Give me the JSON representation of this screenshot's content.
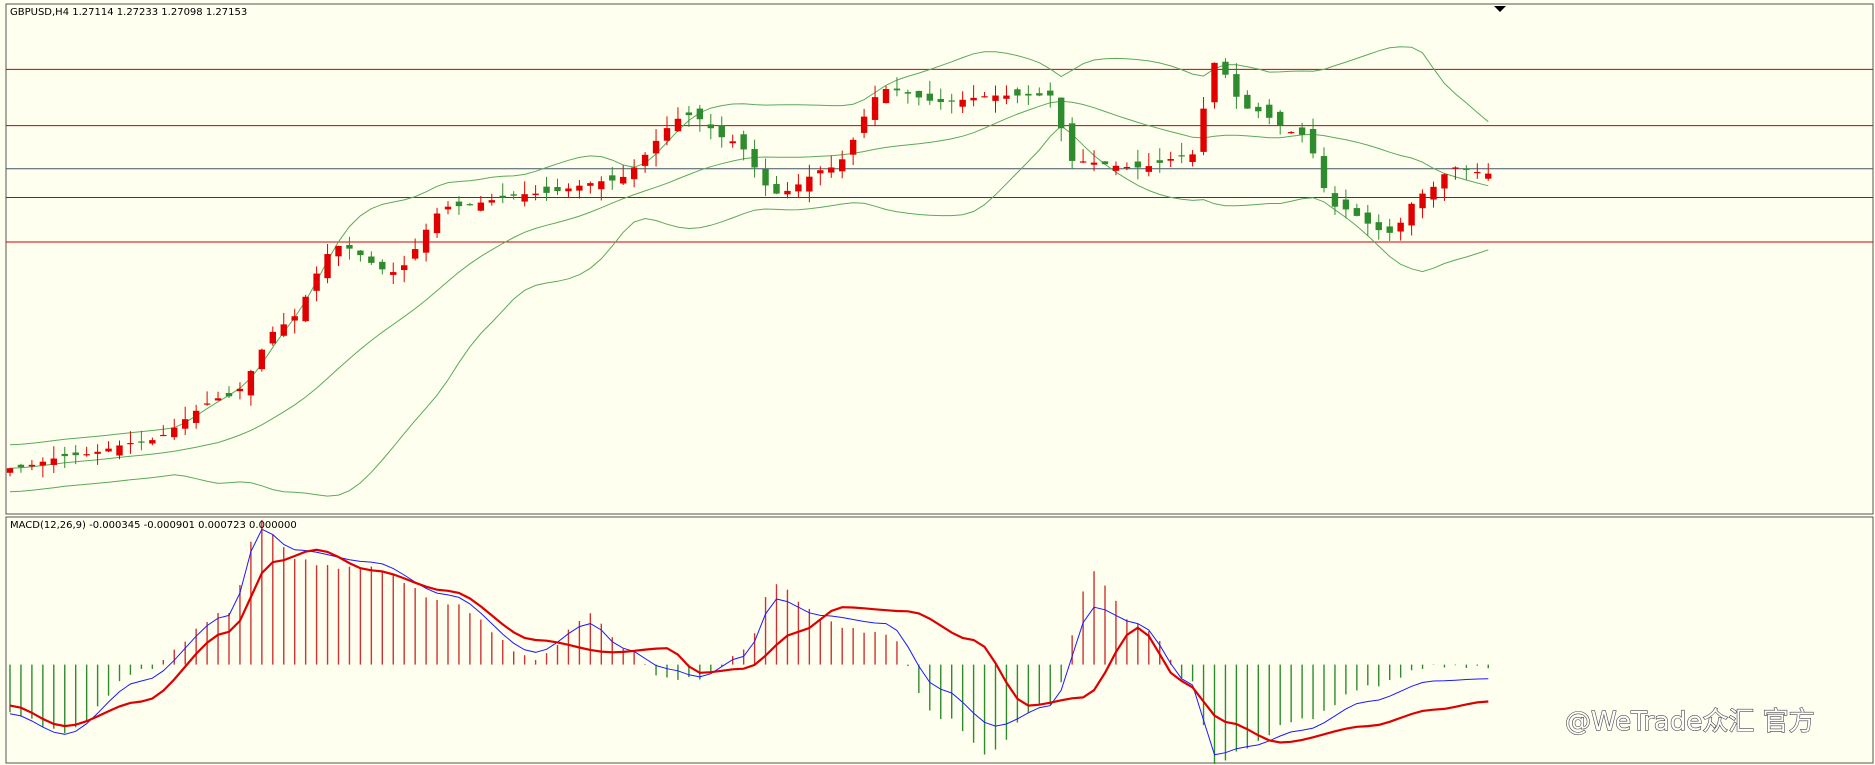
{
  "chart_data": [
    {
      "type": "candlestick",
      "title": "GBPUSD,H4  1.27114 1.27233 1.27098 1.27153",
      "symbol": "GBPUSD",
      "timeframe": "H4",
      "ohlc_readout": {
        "open": 1.27114,
        "high": 1.27233,
        "low": 1.27098,
        "close": 1.27153
      },
      "y_range": [
        1.2455,
        1.2845
      ],
      "bar_count": 136,
      "key_points_close": [
        [
          0,
          1.249
        ],
        [
          6,
          1.25
        ],
        [
          12,
          1.251
        ],
        [
          20,
          1.2545
        ],
        [
          25,
          1.26
        ],
        [
          30,
          1.266
        ],
        [
          35,
          1.264
        ],
        [
          40,
          1.269
        ],
        [
          48,
          1.27
        ],
        [
          55,
          1.271
        ],
        [
          62,
          1.276
        ],
        [
          66,
          1.274
        ],
        [
          70,
          1.27
        ],
        [
          75,
          1.272
        ],
        [
          80,
          1.278
        ],
        [
          85,
          1.277
        ],
        [
          90,
          1.2775
        ],
        [
          95,
          1.2775
        ],
        [
          97,
          1.2725
        ],
        [
          103,
          1.272
        ],
        [
          108,
          1.273
        ],
        [
          110,
          1.28
        ],
        [
          113,
          1.2765
        ],
        [
          118,
          1.2745
        ],
        [
          121,
          1.269
        ],
        [
          126,
          1.267
        ],
        [
          129,
          1.27
        ],
        [
          132,
          1.272
        ],
        [
          135,
          1.27153
        ]
      ],
      "horizontal_levels": [
        1.2795,
        1.2752,
        1.2697,
        1.2663
      ],
      "current_price_line": 1.2719,
      "colors": {
        "bull": "#e00000",
        "bear": "#2e8b2e",
        "bands": "#5aaa5a",
        "levels": "#cc0000",
        "price_line": "#445566",
        "background": "#fffff0"
      },
      "overlay": "Bollinger Bands"
    },
    {
      "type": "line",
      "title": "MACD(12,26,9) -0.000345 -0.000901 0.000723 0.000000",
      "indicator": "MACD",
      "params": [
        12,
        26,
        9
      ],
      "values_readout": [
        -0.000345,
        -0.000901,
        0.000723,
        0.0
      ],
      "y_range": [
        -0.0024,
        0.0036
      ],
      "key_points_main": [
        [
          0,
          -0.0012
        ],
        [
          5,
          -0.0017
        ],
        [
          12,
          -0.0004
        ],
        [
          20,
          0.0012
        ],
        [
          23,
          0.0033
        ],
        [
          26,
          0.0028
        ],
        [
          33,
          0.0025
        ],
        [
          40,
          0.0017
        ],
        [
          48,
          0.0003
        ],
        [
          53,
          0.001
        ],
        [
          56,
          0.0004
        ],
        [
          60,
          -0.0001
        ],
        [
          63,
          -0.0003
        ],
        [
          67,
          0.0002
        ],
        [
          70,
          0.0016
        ],
        [
          74,
          0.0012
        ],
        [
          80,
          0.001
        ],
        [
          85,
          -0.0006
        ],
        [
          90,
          -0.0015
        ],
        [
          95,
          -0.001
        ],
        [
          99,
          0.0014
        ],
        [
          103,
          0.001
        ],
        [
          108,
          -0.0005
        ],
        [
          110,
          -0.0022
        ],
        [
          113,
          -0.002
        ],
        [
          118,
          -0.0016
        ],
        [
          124,
          -0.0009
        ],
        [
          130,
          -0.0004
        ],
        [
          135,
          -0.000345
        ]
      ],
      "key_points_signal": [
        [
          0,
          -0.001
        ],
        [
          5,
          -0.0015
        ],
        [
          12,
          -0.0009
        ],
        [
          20,
          0.0008
        ],
        [
          24,
          0.0025
        ],
        [
          28,
          0.0028
        ],
        [
          33,
          0.0023
        ],
        [
          40,
          0.0018
        ],
        [
          48,
          0.0006
        ],
        [
          55,
          0.0003
        ],
        [
          60,
          0.0004
        ],
        [
          63,
          -0.0002
        ],
        [
          67,
          -0.0001
        ],
        [
          72,
          0.0008
        ],
        [
          76,
          0.0014
        ],
        [
          82,
          0.0013
        ],
        [
          88,
          0.0006
        ],
        [
          93,
          -0.001
        ],
        [
          98,
          -0.0008
        ],
        [
          103,
          0.0009
        ],
        [
          107,
          -0.0004
        ],
        [
          111,
          -0.0014
        ],
        [
          116,
          -0.0019
        ],
        [
          124,
          -0.0015
        ],
        [
          130,
          -0.0011
        ],
        [
          135,
          -0.000901
        ]
      ],
      "colors": {
        "main": "#1a1aff",
        "signal": "#dd0000",
        "hist_pos": "#cc3333",
        "hist_neg": "#2e8b2e"
      }
    }
  ],
  "watermark": "@WeTrade众汇 官方"
}
